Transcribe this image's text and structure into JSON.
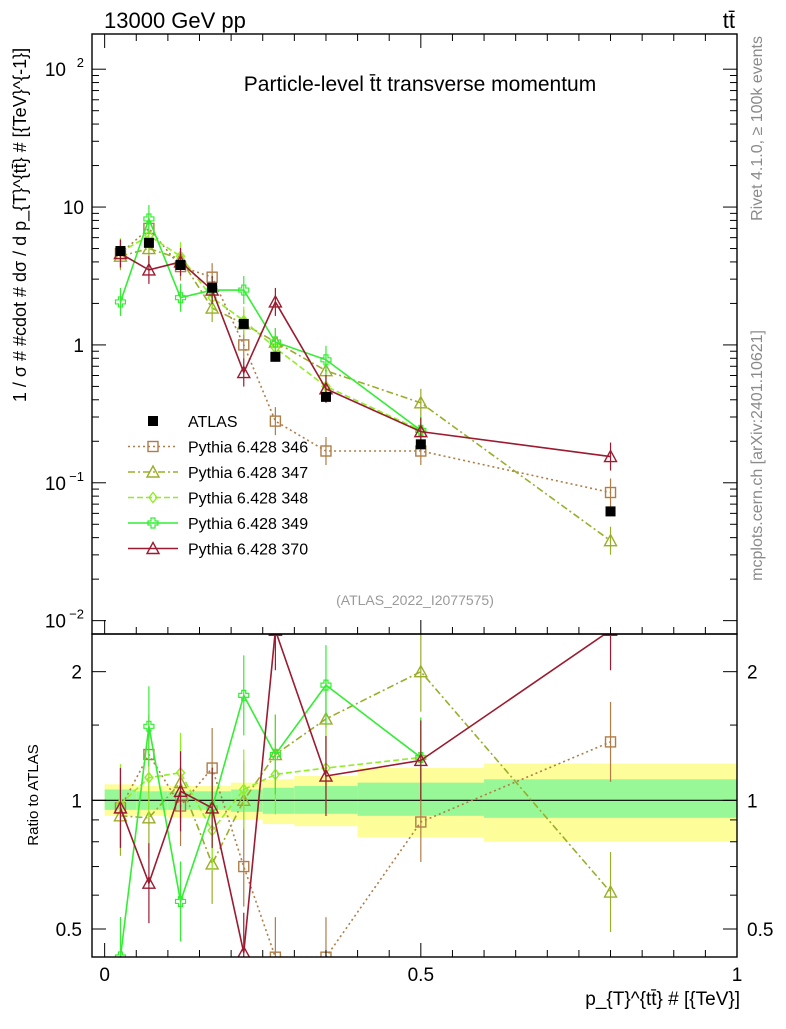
{
  "header": {
    "energy": "13000 GeV pp",
    "process": "tt̄"
  },
  "side": {
    "rivet": "Rivet 4.1.0, ≥ 100k events",
    "source": "mcplots.cern.ch [arXiv:2401.10621]"
  },
  "chart_data": [
    {
      "type": "line",
      "panel": "main",
      "title": "Particle-level t̄t transverse momentum",
      "ylabel": "1 / σ # #cdot # dσ / d p_{T}^{tt̄} # [{TeV}^{-1}]",
      "yscale": "log",
      "ylim": [
        0.008,
        180
      ],
      "xlim": [
        -0.02,
        1.0
      ],
      "yticks": [
        {
          "v": 0.01,
          "label": "10",
          "exp": "−2"
        },
        {
          "v": 0.1,
          "label": "10",
          "exp": "−1"
        },
        {
          "v": 1,
          "label": "1",
          "exp": ""
        },
        {
          "v": 10,
          "label": "10",
          "exp": ""
        },
        {
          "v": 100,
          "label": "10",
          "exp": "2"
        }
      ],
      "reference": {
        "name": "ATLAS",
        "x": [
          0.025,
          0.07,
          0.12,
          0.17,
          0.22,
          0.27,
          0.35,
          0.5,
          0.8
        ],
        "y": [
          4.8,
          5.5,
          3.8,
          2.6,
          1.42,
          0.82,
          0.42,
          0.19,
          0.062
        ]
      },
      "series": [
        {
          "name": "Pythia 6.428 346",
          "color": "#b07d47",
          "marker": "square",
          "dash": "2,3",
          "x": [
            0.025,
            0.07,
            0.12,
            0.17,
            0.22,
            0.27,
            0.35,
            0.5,
            0.8
          ],
          "y": [
            4.6,
            7.0,
            3.7,
            3.1,
            1.0,
            0.28,
            0.17,
            0.17,
            0.085
          ]
        },
        {
          "name": "Pythia 6.428 347",
          "color": "#9bad2a",
          "marker": "triangle",
          "dash": "7,3,2,3",
          "x": [
            0.025,
            0.07,
            0.12,
            0.17,
            0.22,
            0.27,
            0.35,
            0.5,
            0.8
          ],
          "y": [
            4.4,
            5.0,
            4.2,
            1.85,
            1.42,
            1.05,
            0.65,
            0.38,
            0.038
          ]
        },
        {
          "name": "Pythia 6.428 348",
          "color": "#90ee24",
          "marker": "diamond",
          "dash": "6,3",
          "x": [
            0.025,
            0.07,
            0.12,
            0.17,
            0.22,
            0.27,
            0.35,
            0.5,
            0.8
          ],
          "y": [
            4.7,
            6.2,
            4.4,
            2.2,
            1.5,
            0.95,
            0.5,
            0.24,
            0.0
          ]
        },
        {
          "name": "Pythia 6.428 349",
          "color": "#33ee33",
          "marker": "cross",
          "dash": "",
          "x": [
            0.025,
            0.07,
            0.12,
            0.17,
            0.22,
            0.27,
            0.35,
            0.5
          ],
          "y": [
            2.05,
            8.2,
            2.2,
            2.5,
            2.5,
            1.05,
            0.78,
            0.24
          ]
        },
        {
          "name": "Pythia 6.428 370",
          "color": "#9b1b30",
          "marker": "triangle",
          "dash": "",
          "x": [
            0.025,
            0.07,
            0.12,
            0.17,
            0.22,
            0.27,
            0.35,
            0.5,
            0.8
          ],
          "y": [
            4.6,
            3.5,
            4.0,
            2.5,
            0.63,
            2.05,
            0.48,
            0.235,
            0.155
          ]
        }
      ],
      "watermark": "(ATLAS_2022_I2077575)"
    },
    {
      "type": "line",
      "panel": "ratio",
      "ylabel": "Ratio to ATLAS",
      "xlabel": "p_{T}^{tt̄} # [{TeV}]",
      "yscale": "log",
      "ylim": [
        0.43,
        2.45
      ],
      "xlim": [
        -0.02,
        1.0
      ],
      "xticks": [
        0,
        0.5,
        1
      ],
      "xtick_labels": [
        "0",
        "0.5",
        "1"
      ],
      "yticks": [
        0.5,
        1,
        2
      ],
      "ytick_labels": [
        "0.5",
        "1",
        "2"
      ],
      "bands": {
        "edges": [
          0,
          0.05,
          0.1,
          0.15,
          0.2,
          0.25,
          0.3,
          0.4,
          0.6,
          1.0
        ],
        "inner_lo": [
          0.95,
          0.95,
          0.95,
          0.95,
          0.94,
          0.93,
          0.93,
          0.92,
          0.91
        ],
        "inner_hi": [
          1.06,
          1.05,
          1.05,
          1.05,
          1.06,
          1.07,
          1.08,
          1.1,
          1.12
        ],
        "outer_lo": [
          0.92,
          0.92,
          0.91,
          0.91,
          0.9,
          0.88,
          0.87,
          0.82,
          0.8
        ],
        "outer_hi": [
          1.09,
          1.08,
          1.08,
          1.08,
          1.1,
          1.12,
          1.14,
          1.19,
          1.22
        ]
      },
      "series": [
        {
          "name": "Pythia 6.428 346",
          "x": [
            0.025,
            0.07,
            0.12,
            0.17,
            0.22,
            0.27,
            0.35,
            0.5,
            0.8
          ],
          "y": [
            0.96,
            1.28,
            0.97,
            1.19,
            0.7,
            0.34,
            0.4,
            0.89,
            1.37
          ]
        },
        {
          "name": "Pythia 6.428 347",
          "x": [
            0.025,
            0.07,
            0.12,
            0.17,
            0.22,
            0.27,
            0.35,
            0.5,
            0.8
          ],
          "y": [
            0.92,
            0.91,
            1.1,
            0.71,
            1.0,
            1.28,
            1.55,
            2.0,
            0.61
          ]
        },
        {
          "name": "Pythia 6.428 348",
          "x": [
            0.025,
            0.07,
            0.12,
            0.17,
            0.22,
            0.27,
            0.35,
            0.5
          ],
          "y": [
            0.98,
            1.13,
            1.16,
            0.85,
            1.06,
            1.15,
            1.19,
            1.26
          ]
        },
        {
          "name": "Pythia 6.428 349",
          "x": [
            0.025,
            0.07,
            0.12,
            0.17,
            0.22,
            0.27,
            0.35,
            0.5
          ],
          "y": [
            0.43,
            1.49,
            0.58,
            0.96,
            1.76,
            1.28,
            1.86,
            1.26
          ]
        },
        {
          "name": "Pythia 6.428 370",
          "x": [
            0.025,
            0.07,
            0.12,
            0.17,
            0.22,
            0.27,
            0.35,
            0.5,
            0.8
          ],
          "y": [
            0.96,
            0.64,
            1.05,
            0.96,
            0.44,
            2.5,
            1.14,
            1.24,
            2.5
          ]
        }
      ]
    }
  ]
}
